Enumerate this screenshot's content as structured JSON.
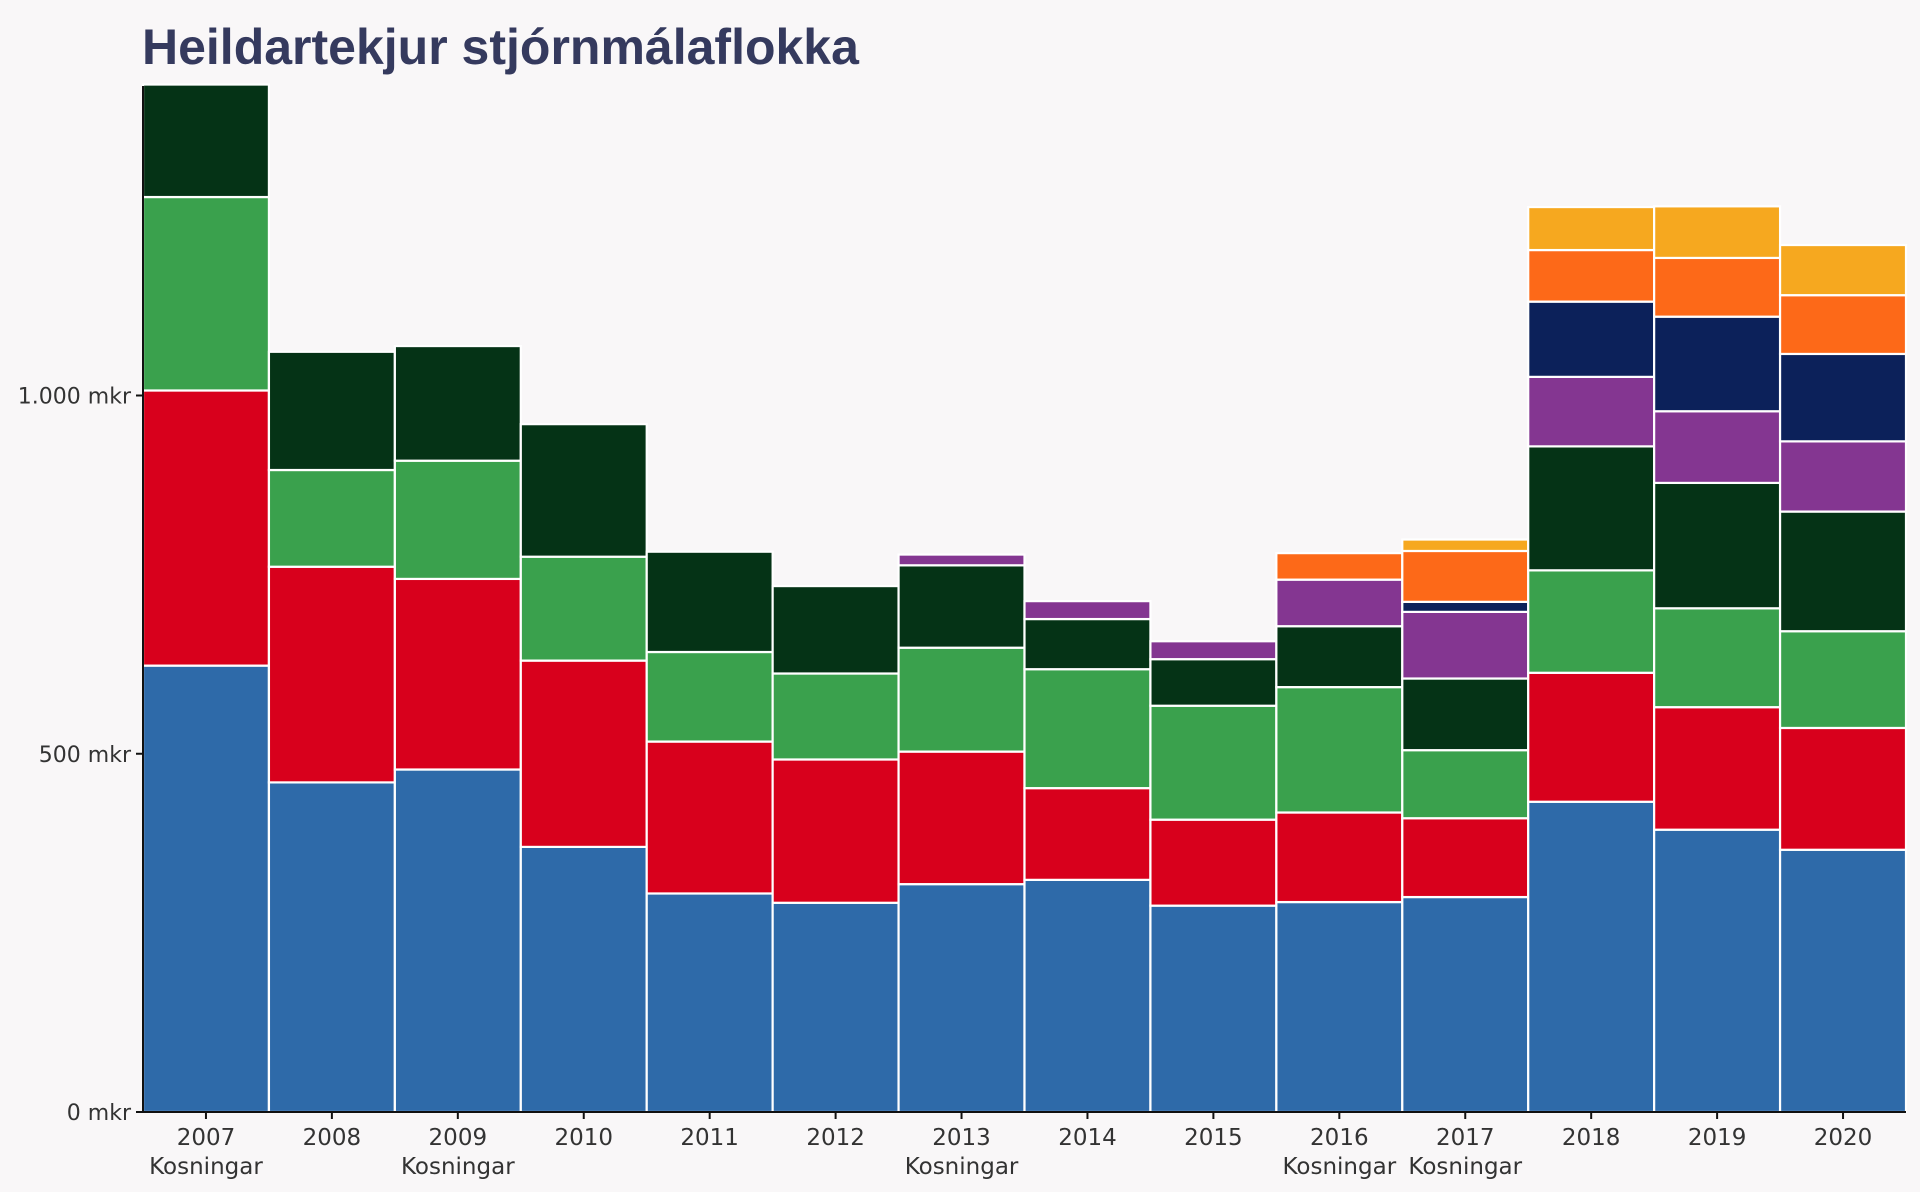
{
  "chart_data": {
    "type": "bar",
    "stacked": true,
    "title": "Heildartekjur stjórnmálaflokka",
    "categories": [
      "2007",
      "2008",
      "2009",
      "2010",
      "2011",
      "2012",
      "2013",
      "2014",
      "2015",
      "2016",
      "2017",
      "2018",
      "2019",
      "2020"
    ],
    "election_note": [
      "Kosningar",
      "",
      "Kosningar",
      "",
      "",
      "",
      "Kosningar",
      "",
      "",
      "Kosningar",
      "Kosningar",
      "",
      "",
      ""
    ],
    "y_ticks": [
      {
        "value": 0,
        "label": "0 mkr"
      },
      {
        "value": 500,
        "label": "500 mkr"
      },
      {
        "value": 1000,
        "label": "1.000 mkr"
      }
    ],
    "ylim": [
      0,
      1432
    ],
    "grid": false,
    "legend": "none",
    "series": [
      {
        "color": "#2e6aa9",
        "values": [
          623,
          460,
          478,
          370,
          305,
          292,
          318,
          324,
          288,
          293,
          300,
          433,
          394,
          366
        ]
      },
      {
        "color": "#d8001c",
        "values": [
          384,
          301,
          266,
          260,
          212,
          200,
          185,
          128,
          120,
          125,
          110,
          180,
          171,
          170
        ]
      },
      {
        "color": "#3aa14d",
        "values": [
          270,
          135,
          165,
          145,
          125,
          120,
          145,
          166,
          159,
          175,
          95,
          143,
          138,
          135
        ]
      },
      {
        "color": "#053316",
        "values": [
          157,
          165,
          160,
          185,
          140,
          122,
          115,
          70,
          65,
          85,
          100,
          173,
          175,
          167
        ]
      },
      {
        "color": "#843691",
        "values": [
          0,
          0,
          0,
          0,
          0,
          0,
          15,
          25,
          25,
          65,
          93,
          97,
          100,
          98
        ]
      },
      {
        "color": "#0c215a",
        "values": [
          0,
          0,
          0,
          0,
          0,
          0,
          0,
          0,
          0,
          0,
          14,
          105,
          132,
          122
        ]
      },
      {
        "color": "#fd6918",
        "values": [
          0,
          0,
          0,
          0,
          0,
          0,
          0,
          0,
          0,
          37,
          71,
          72,
          82,
          82
        ]
      },
      {
        "color": "#f6a81f",
        "values": [
          0,
          0,
          0,
          0,
          0,
          0,
          0,
          0,
          0,
          0,
          16,
          60,
          72,
          70
        ]
      }
    ]
  }
}
